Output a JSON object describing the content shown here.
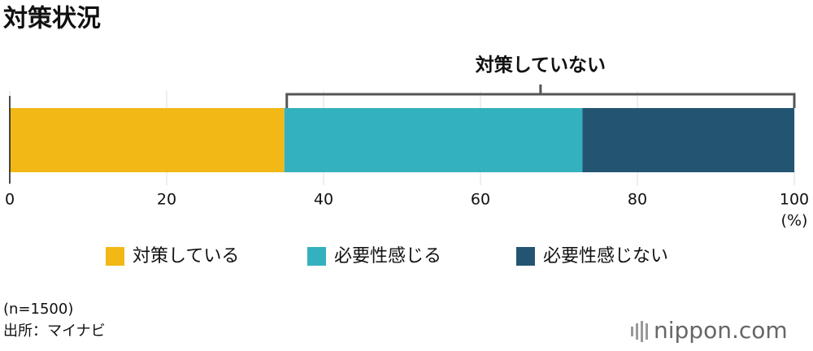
{
  "chart_data": {
    "type": "stacked_bar",
    "title": "対策状況",
    "annotation": "対策していない",
    "x_unit": "(%)",
    "categories": [
      null
    ],
    "series": [
      {
        "name": "対策している",
        "color": "#f1b816",
        "values": [
          35
        ]
      },
      {
        "name": "必要性感じる",
        "color": "#34b1bf",
        "values": [
          38
        ]
      },
      {
        "name": "必要性感じない",
        "color": "#235572",
        "values": [
          27
        ]
      }
    ],
    "xlim": [
      0,
      100
    ],
    "xticks": [
      0,
      20,
      40,
      60,
      80,
      100
    ],
    "grid": true,
    "note": "(n=1500)",
    "source": "出所：マイナビ",
    "logo": "nippon.com"
  }
}
